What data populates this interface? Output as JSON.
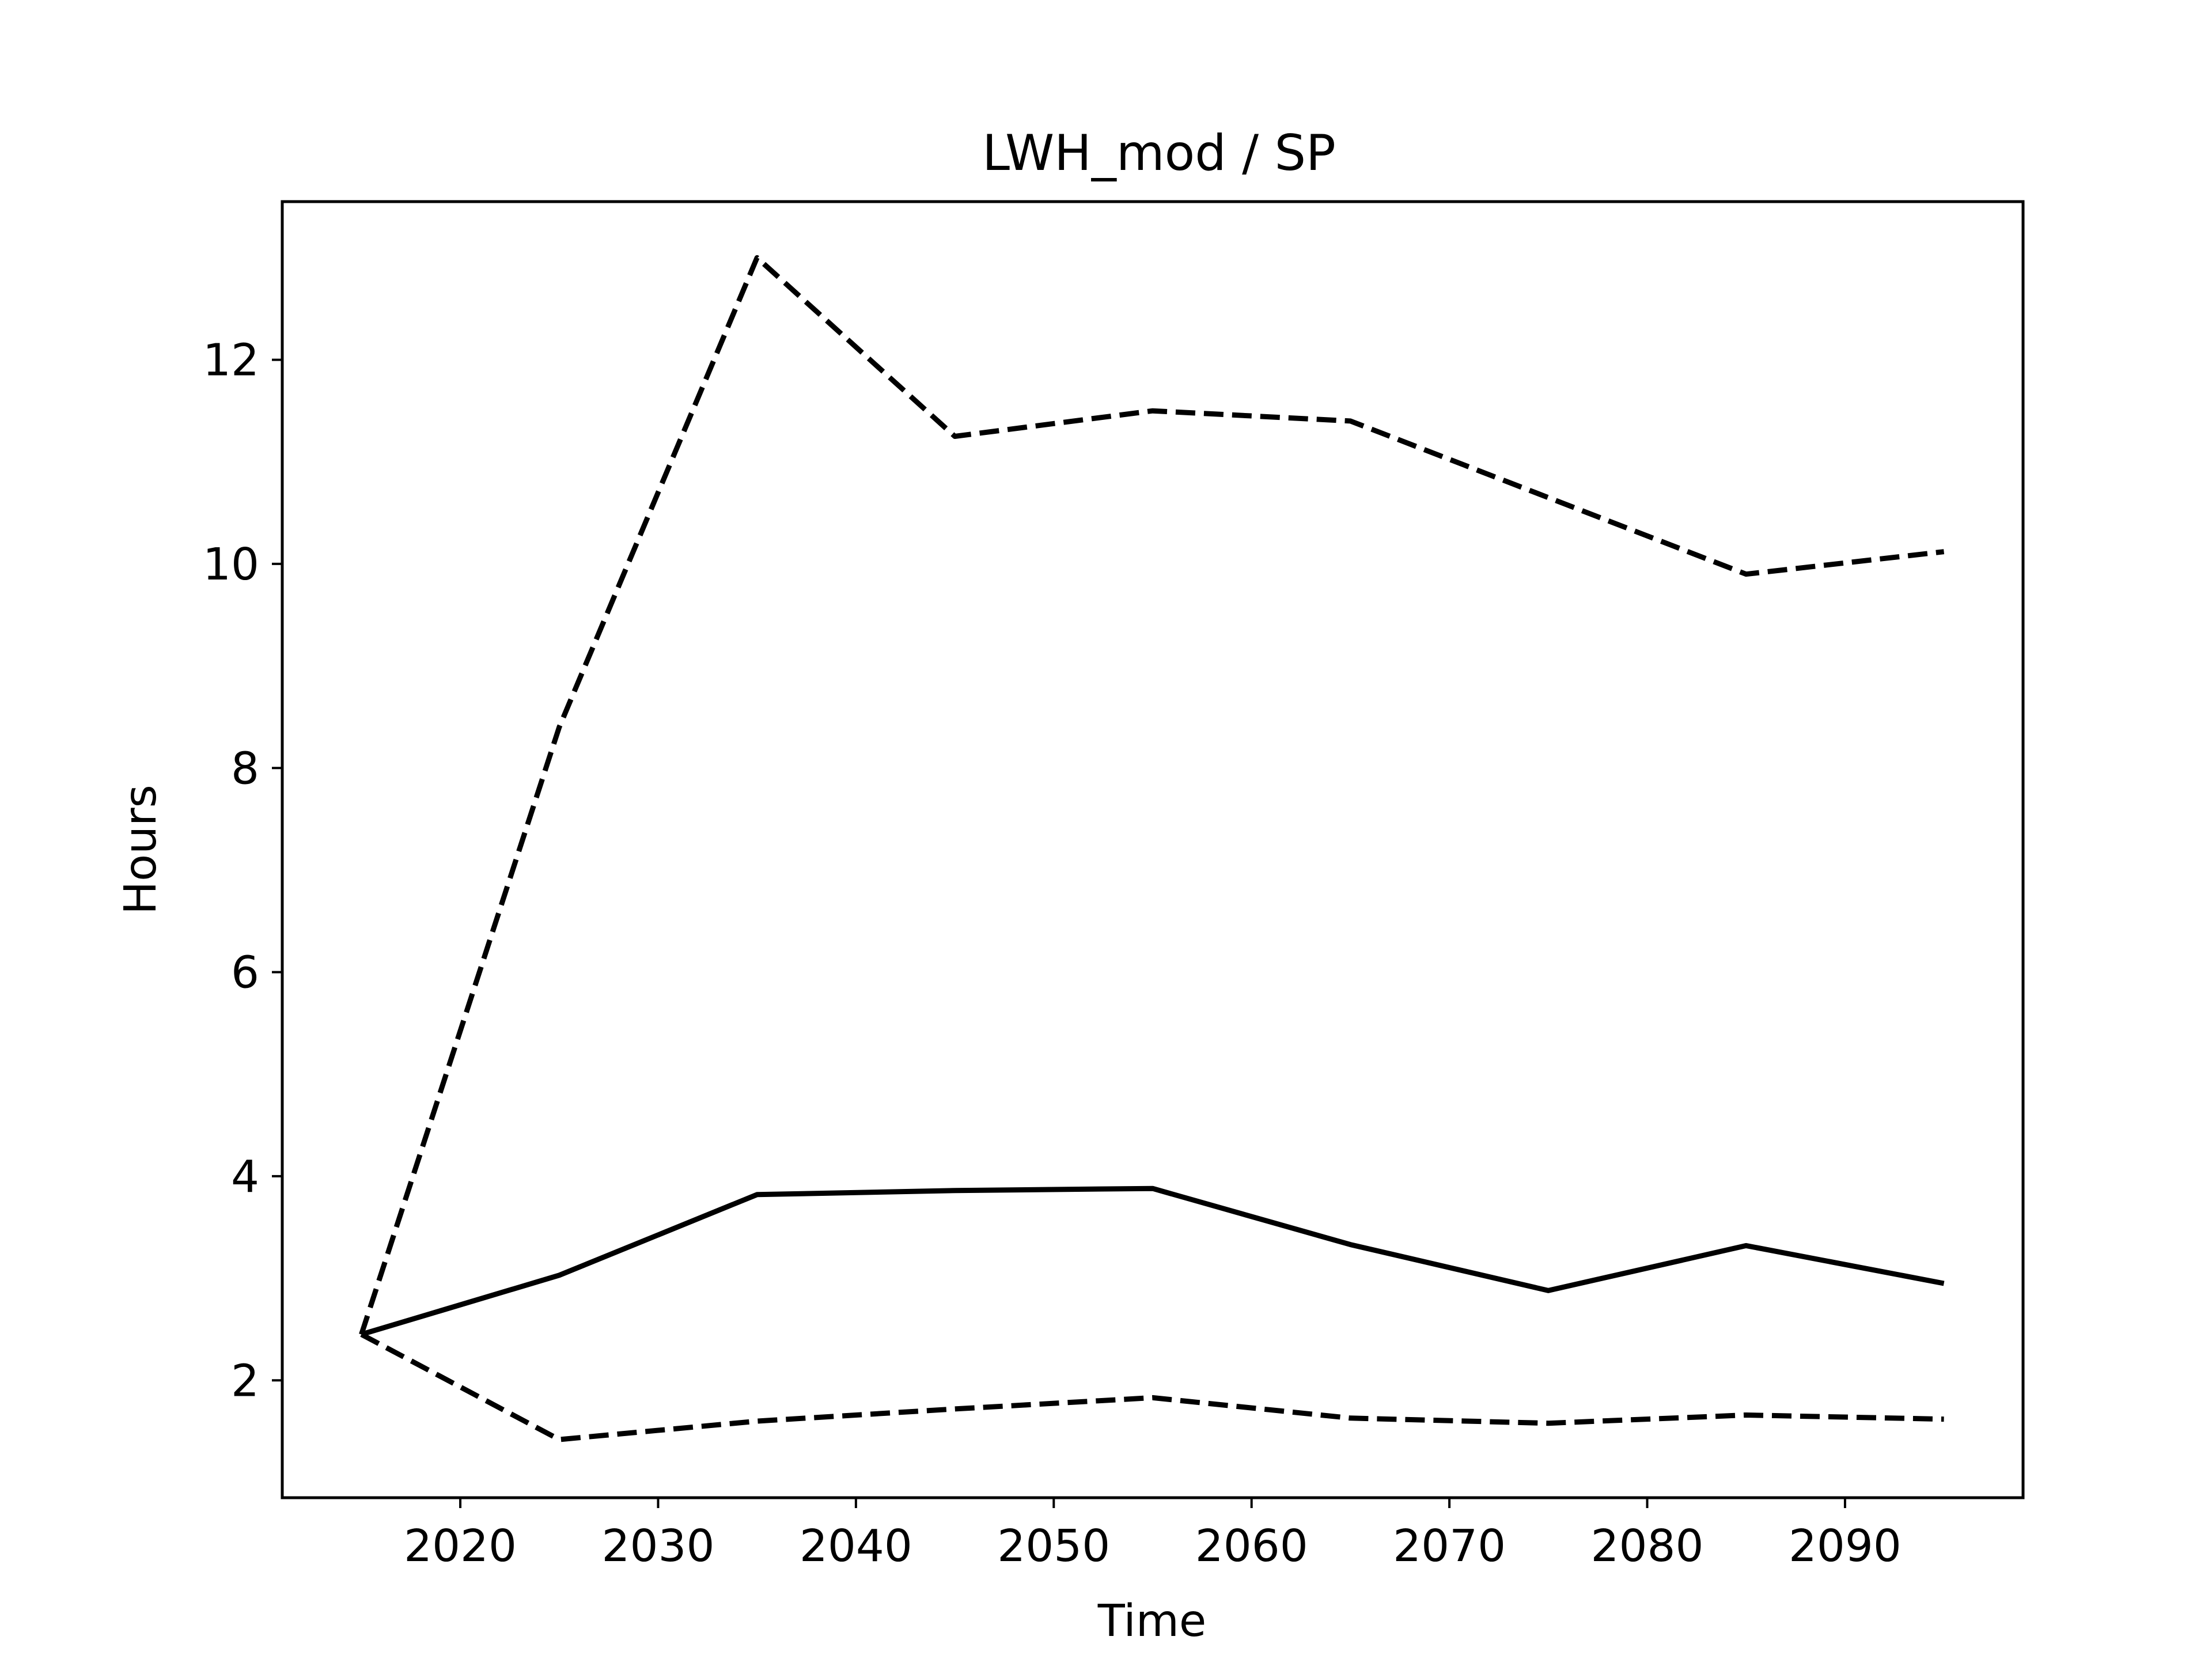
{
  "chart_data": {
    "type": "line",
    "title": "LWH_mod / SP",
    "xlabel": "Time",
    "ylabel": "Hours",
    "xlim": [
      2011,
      2099
    ],
    "ylim": [
      0.85,
      13.55
    ],
    "xticks": [
      2020,
      2030,
      2040,
      2050,
      2060,
      2070,
      2080,
      2090
    ],
    "yticks": [
      2,
      4,
      6,
      8,
      10,
      12
    ],
    "grid": false,
    "legend": "none",
    "x": [
      2015,
      2025,
      2035,
      2045,
      2055,
      2065,
      2075,
      2085,
      2095
    ],
    "series": [
      {
        "style": "dashed",
        "color": "#000000",
        "values": [
          2.45,
          8.4,
          13.0,
          11.25,
          11.5,
          11.4,
          10.65,
          9.9,
          10.12
        ]
      },
      {
        "style": "solid",
        "color": "#000000",
        "values": [
          2.45,
          3.03,
          3.82,
          3.86,
          3.88,
          3.33,
          2.88,
          3.32,
          2.95
        ]
      },
      {
        "style": "dashed",
        "color": "#000000",
        "values": [
          2.45,
          1.42,
          1.6,
          1.72,
          1.83,
          1.63,
          1.58,
          1.66,
          1.62
        ]
      }
    ]
  }
}
